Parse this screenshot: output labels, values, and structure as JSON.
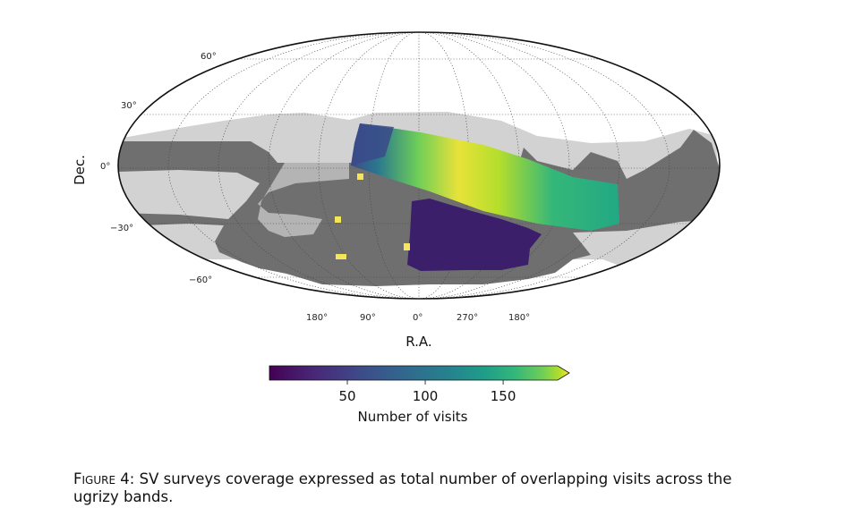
{
  "figure": {
    "y_axis_label": "Dec.",
    "x_axis_label": "R.A.",
    "dec_ticks": [
      "60°",
      "30°",
      "0°",
      "−30°",
      "−60°"
    ],
    "ra_ticks": [
      "180°",
      "90°",
      "0°",
      "270°",
      "180°"
    ],
    "colorbar": {
      "label": "Number of visits",
      "ticks": [
        "50",
        "100",
        "150"
      ],
      "tick_values": [
        50,
        100,
        150
      ],
      "range": [
        0,
        185
      ],
      "extend": "max",
      "colormap": "viridis"
    },
    "colors": {
      "map_dark_gray": "#6f6f6f",
      "map_light_gray": "#d2d2d2",
      "map_mid_gray": "#b4b4b4",
      "survey_low": "#3b1f6b",
      "survey_high": "#f4e55c"
    }
  },
  "caption": {
    "label": "Figure 4:",
    "text": "SV surveys coverage expressed as total number of overlapping visits across the ugrizy bands."
  }
}
